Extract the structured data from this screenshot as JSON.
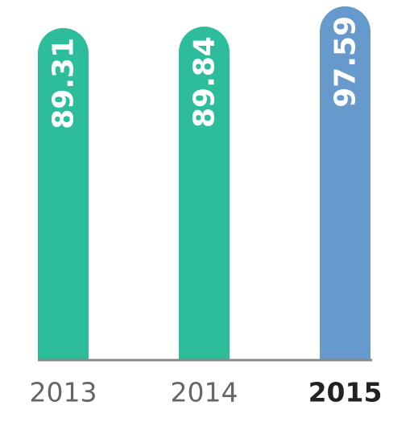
{
  "chart_data": {
    "type": "bar",
    "categories": [
      "2013",
      "2014",
      "2015"
    ],
    "values": [
      89.31,
      89.84,
      97.59
    ],
    "colors": [
      "#2dbd9b",
      "#2dbd9b",
      "#6699cc"
    ],
    "highlight_index": 2,
    "ylim": [
      -37,
      100
    ]
  }
}
